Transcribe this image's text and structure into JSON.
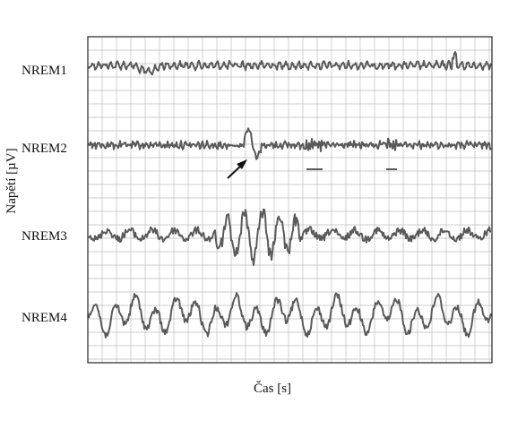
{
  "chart_data": {
    "type": "line",
    "title": "",
    "xlabel": "Čas [s]",
    "ylabel": "Napětí [µV]",
    "grid": true,
    "legend": "none",
    "colors": {
      "trace": "#5a5a5a",
      "grid": "#bdbdbd",
      "frame": "#222222",
      "annotation": "#111111"
    },
    "series": [
      {
        "name": "NREM1",
        "pattern": "low-amplitude mixed-frequency"
      },
      {
        "name": "NREM2",
        "pattern": "sleep spindles and K-complex"
      },
      {
        "name": "NREM3",
        "pattern": "moderate delta waves"
      },
      {
        "name": "NREM4",
        "pattern": "predominant high-amplitude delta waves"
      }
    ],
    "annotations": [
      {
        "type": "arrow",
        "target": "K-complex",
        "series": "NREM2"
      },
      {
        "type": "bar",
        "target": "sleep spindle",
        "series": "NREM2"
      },
      {
        "type": "bar",
        "target": "sleep spindle",
        "series": "NREM2"
      }
    ]
  }
}
